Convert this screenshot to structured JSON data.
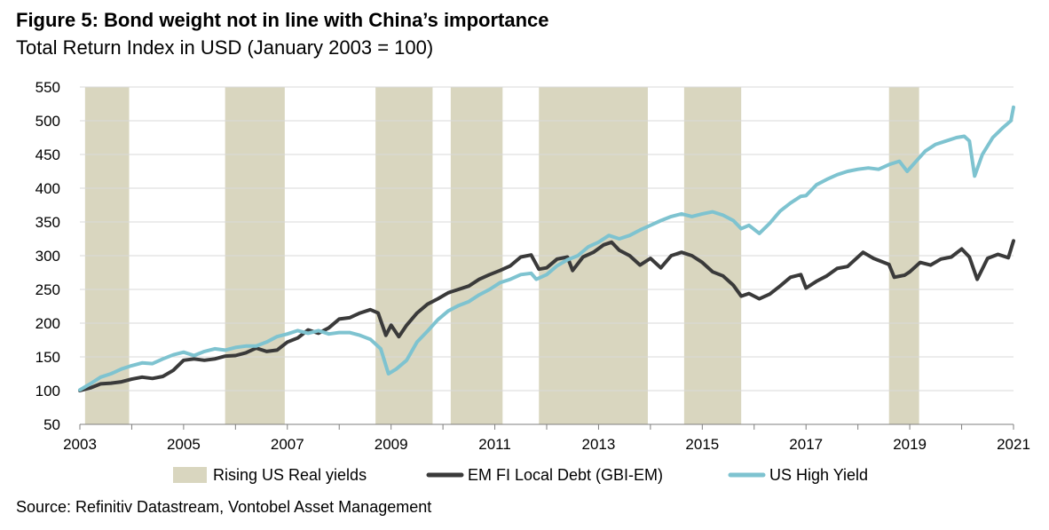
{
  "header": {
    "title": "Figure 5: Bond weight not in line with China’s importance",
    "subtitle": "Total Return Index in USD (January 2003 = 100)"
  },
  "footer": {
    "source": "Source: Refinitiv Datastream, Vontobel Asset Management"
  },
  "chart_data": {
    "type": "line",
    "xlim": [
      2003,
      2021
    ],
    "ylim": [
      50,
      550
    ],
    "yticks": [
      50,
      100,
      150,
      200,
      250,
      300,
      350,
      400,
      450,
      500,
      550
    ],
    "xticks": [
      2003,
      2005,
      2007,
      2009,
      2011,
      2013,
      2015,
      2017,
      2019,
      2021
    ],
    "grid": "horizontal",
    "legend_position": "bottom",
    "shaded_periods": {
      "name": "Rising US Real yields",
      "color": "#d9d6bf",
      "periods": [
        [
          2003.1,
          2003.95
        ],
        [
          2005.8,
          2006.95
        ],
        [
          2008.7,
          2009.8
        ],
        [
          2010.15,
          2011.15
        ],
        [
          2011.85,
          2013.95
        ],
        [
          2014.65,
          2015.75
        ],
        [
          2018.6,
          2019.18
        ]
      ]
    },
    "series": [
      {
        "name": "EM FI Local Debt (GBI-EM)",
        "color": "#3a3a3a",
        "x": [
          2003.0,
          2003.2,
          2003.4,
          2003.6,
          2003.8,
          2004.0,
          2004.2,
          2004.4,
          2004.6,
          2004.8,
          2005.0,
          2005.2,
          2005.4,
          2005.6,
          2005.8,
          2006.0,
          2006.2,
          2006.4,
          2006.6,
          2006.8,
          2007.0,
          2007.2,
          2007.4,
          2007.6,
          2007.8,
          2008.0,
          2008.2,
          2008.4,
          2008.6,
          2008.75,
          2008.9,
          2009.0,
          2009.15,
          2009.3,
          2009.5,
          2009.7,
          2009.9,
          2010.1,
          2010.3,
          2010.5,
          2010.7,
          2010.9,
          2011.1,
          2011.3,
          2011.5,
          2011.7,
          2011.85,
          2012.0,
          2012.2,
          2012.4,
          2012.5,
          2012.7,
          2012.9,
          2013.1,
          2013.25,
          2013.4,
          2013.6,
          2013.8,
          2014.0,
          2014.2,
          2014.4,
          2014.6,
          2014.8,
          2015.0,
          2015.2,
          2015.4,
          2015.6,
          2015.75,
          2015.9,
          2016.1,
          2016.3,
          2016.5,
          2016.7,
          2016.9,
          2017.0,
          2017.2,
          2017.4,
          2017.6,
          2017.8,
          2018.0,
          2018.1,
          2018.3,
          2018.5,
          2018.6,
          2018.7,
          2018.9,
          2019.0,
          2019.2,
          2019.4,
          2019.6,
          2019.8,
          2020.0,
          2020.15,
          2020.3,
          2020.5,
          2020.7,
          2020.9,
          2021.0
        ],
        "y": [
          100,
          104,
          110,
          111,
          113,
          117,
          120,
          118,
          121,
          130,
          145,
          147,
          145,
          147,
          151,
          152,
          156,
          163,
          158,
          160,
          172,
          178,
          190,
          185,
          193,
          206,
          208,
          215,
          220,
          215,
          182,
          197,
          180,
          197,
          215,
          228,
          236,
          245,
          250,
          255,
          265,
          272,
          278,
          285,
          298,
          301,
          280,
          282,
          295,
          298,
          278,
          298,
          305,
          316,
          320,
          308,
          300,
          286,
          296,
          282,
          300,
          305,
          300,
          290,
          276,
          270,
          256,
          240,
          244,
          236,
          243,
          255,
          268,
          272,
          252,
          262,
          270,
          281,
          284,
          298,
          305,
          296,
          290,
          287,
          268,
          271,
          276,
          290,
          286,
          295,
          298,
          310,
          298,
          265,
          296,
          302,
          297,
          322
        ]
      },
      {
        "name": "US High Yield",
        "color": "#7ec3d0",
        "x": [
          2003.0,
          2003.2,
          2003.4,
          2003.6,
          2003.8,
          2004.0,
          2004.2,
          2004.4,
          2004.6,
          2004.8,
          2005.0,
          2005.2,
          2005.4,
          2005.6,
          2005.8,
          2006.0,
          2006.2,
          2006.4,
          2006.6,
          2006.8,
          2007.0,
          2007.2,
          2007.4,
          2007.6,
          2007.8,
          2008.0,
          2008.2,
          2008.4,
          2008.6,
          2008.8,
          2008.95,
          2009.1,
          2009.3,
          2009.5,
          2009.7,
          2009.9,
          2010.1,
          2010.3,
          2010.5,
          2010.7,
          2010.9,
          2011.1,
          2011.3,
          2011.5,
          2011.7,
          2011.8,
          2012.0,
          2012.2,
          2012.4,
          2012.6,
          2012.8,
          2013.0,
          2013.2,
          2013.4,
          2013.6,
          2013.8,
          2014.0,
          2014.2,
          2014.4,
          2014.6,
          2014.8,
          2015.0,
          2015.2,
          2015.4,
          2015.6,
          2015.75,
          2015.9,
          2016.1,
          2016.3,
          2016.5,
          2016.7,
          2016.9,
          2017.0,
          2017.2,
          2017.4,
          2017.6,
          2017.8,
          2018.0,
          2018.2,
          2018.4,
          2018.6,
          2018.8,
          2018.95,
          2019.1,
          2019.3,
          2019.5,
          2019.7,
          2019.9,
          2020.05,
          2020.15,
          2020.25,
          2020.4,
          2020.6,
          2020.8,
          2020.95,
          2021.0
        ],
        "y": [
          101,
          110,
          120,
          125,
          132,
          137,
          141,
          140,
          147,
          153,
          157,
          152,
          158,
          162,
          160,
          164,
          166,
          166,
          172,
          180,
          184,
          189,
          185,
          189,
          184,
          186,
          186,
          182,
          176,
          162,
          125,
          132,
          145,
          172,
          188,
          205,
          218,
          226,
          232,
          242,
          250,
          260,
          265,
          272,
          274,
          265,
          272,
          285,
          294,
          300,
          313,
          320,
          330,
          325,
          330,
          338,
          345,
          352,
          358,
          362,
          358,
          362,
          365,
          360,
          352,
          340,
          345,
          333,
          348,
          366,
          378,
          388,
          389,
          405,
          413,
          420,
          425,
          428,
          430,
          428,
          435,
          440,
          425,
          438,
          455,
          465,
          470,
          475,
          477,
          470,
          418,
          450,
          475,
          490,
          500,
          520
        ]
      }
    ]
  }
}
